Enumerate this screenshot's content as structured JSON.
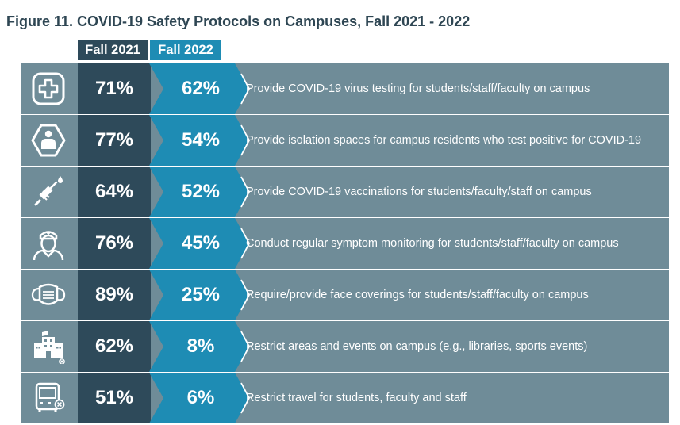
{
  "title": "Figure 11.  COVID-19 Safety Protocols on Campuses, Fall 2021 - 2022",
  "colors": {
    "dark": "#2e4a5a",
    "blue": "#1e8cb4",
    "row": "#6f8c98",
    "text": "#ffffff"
  },
  "chart_data": {
    "type": "table",
    "title": "Figure 11.  COVID-19 Safety Protocols on Campuses, Fall 2021 - 2022",
    "series": [
      {
        "name": "Fall 2021",
        "values": [
          "71%",
          "77%",
          "64%",
          "76%",
          "89%",
          "62%",
          "51%"
        ]
      },
      {
        "name": "Fall 2022",
        "values": [
          "62%",
          "54%",
          "52%",
          "45%",
          "25%",
          "8%",
          "6%"
        ]
      }
    ],
    "rows": [
      {
        "icon": "medical-cross-icon",
        "fall_2021": "71%",
        "fall_2022": "62%",
        "label": "Provide COVID-19 virus testing for students/staff/faculty on campus"
      },
      {
        "icon": "isolation-person-icon",
        "fall_2021": "77%",
        "fall_2022": "54%",
        "label": "Provide isolation spaces for campus residents who test positive for COVID-19"
      },
      {
        "icon": "syringe-icon",
        "fall_2021": "64%",
        "fall_2022": "52%",
        "label": "Provide COVID-19 vaccinations for students/faculty/staff on campus"
      },
      {
        "icon": "nurse-icon",
        "fall_2021": "76%",
        "fall_2022": "45%",
        "label": "Conduct regular symptom monitoring for students/staff/faculty on campus"
      },
      {
        "icon": "face-mask-icon",
        "fall_2021": "89%",
        "fall_2022": "25%",
        "label": "Require/provide face coverings for students/staff/faculty on campus"
      },
      {
        "icon": "school-building-icon",
        "fall_2021": "62%",
        "fall_2022": "8%",
        "label": "Restrict areas and events on campus (e.g., libraries, sports events)"
      },
      {
        "icon": "bus-icon",
        "fall_2021": "51%",
        "fall_2022": "6%",
        "label": "Restrict travel for students, faculty and staff"
      }
    ]
  }
}
